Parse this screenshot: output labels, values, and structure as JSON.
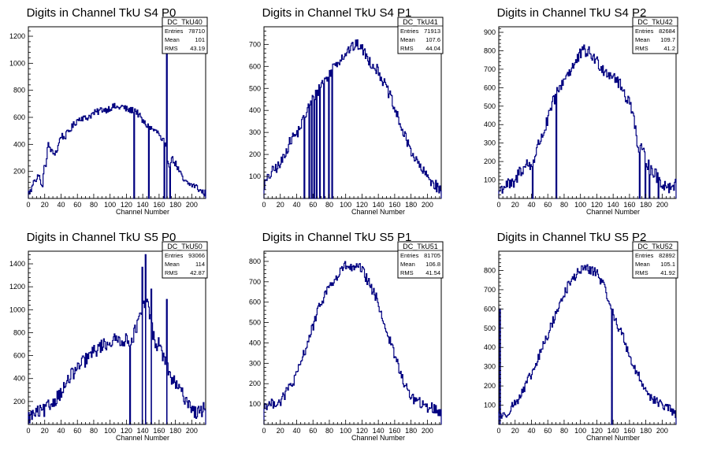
{
  "colors": {
    "histogram": "#000080",
    "axis": "#000000",
    "background": "#ffffff"
  },
  "x_axis_label": "Channel Number",
  "chart_data": [
    {
      "type": "bar",
      "title": "Digits in Channel TkU S4 P0",
      "xlabel": "Channel Number",
      "xlim": [
        0,
        217
      ],
      "ylim": [
        0,
        1270
      ],
      "xticks": [
        0,
        20,
        40,
        60,
        80,
        100,
        120,
        140,
        160,
        180,
        200
      ],
      "yticks": [
        200,
        400,
        600,
        800,
        1000,
        1200
      ],
      "stats": {
        "name": "DC_TkU40",
        "rows": [
          [
            "Entries",
            "78710"
          ],
          [
            "Mean",
            "101"
          ],
          [
            "RMS",
            "43.19"
          ]
        ]
      },
      "envelope": [
        [
          0,
          40
        ],
        [
          4,
          60
        ],
        [
          7,
          160
        ],
        [
          10,
          120
        ],
        [
          13,
          200
        ],
        [
          15,
          100
        ],
        [
          17,
          80
        ],
        [
          20,
          250
        ],
        [
          22,
          260
        ],
        [
          24,
          400
        ],
        [
          26,
          380
        ],
        [
          30,
          330
        ],
        [
          35,
          350
        ],
        [
          40,
          470
        ],
        [
          44,
          450
        ],
        [
          50,
          500
        ],
        [
          55,
          540
        ],
        [
          60,
          580
        ],
        [
          65,
          600
        ],
        [
          70,
          590
        ],
        [
          75,
          610
        ],
        [
          80,
          630
        ],
        [
          85,
          640
        ],
        [
          90,
          660
        ],
        [
          95,
          655
        ],
        [
          100,
          670
        ],
        [
          105,
          680
        ],
        [
          110,
          670
        ],
        [
          115,
          680
        ],
        [
          120,
          660
        ],
        [
          125,
          650
        ],
        [
          130,
          660
        ],
        [
          135,
          620
        ],
        [
          140,
          570
        ],
        [
          145,
          540
        ],
        [
          150,
          520
        ],
        [
          155,
          500
        ],
        [
          160,
          480
        ],
        [
          163,
          420
        ],
        [
          166,
          430
        ],
        [
          170,
          320
        ],
        [
          172,
          240
        ],
        [
          175,
          300
        ],
        [
          180,
          260
        ],
        [
          184,
          210
        ],
        [
          190,
          130
        ],
        [
          195,
          110
        ],
        [
          200,
          100
        ],
        [
          205,
          90
        ],
        [
          210,
          60
        ],
        [
          215,
          40
        ]
      ],
      "spikes": [
        [
          129,
          0
        ],
        [
          147,
          0
        ],
        [
          166,
          0
        ],
        [
          169,
          1180
        ],
        [
          173,
          0
        ]
      ],
      "noise": 25
    },
    {
      "type": "bar",
      "title": "Digits in Channel TkU S4 P1",
      "xlabel": "Channel Number",
      "xlim": [
        0,
        217
      ],
      "ylim": [
        0,
        780
      ],
      "xticks": [
        0,
        20,
        40,
        60,
        80,
        100,
        120,
        140,
        160,
        180,
        200
      ],
      "yticks": [
        100,
        200,
        300,
        400,
        500,
        600,
        700
      ],
      "stats": {
        "name": "DC_TkU41",
        "rows": [
          [
            "Entries",
            "71913"
          ],
          [
            "Mean",
            "107.6"
          ],
          [
            "RMS",
            "44.04"
          ]
        ]
      },
      "envelope": [
        [
          0,
          60
        ],
        [
          5,
          90
        ],
        [
          10,
          120
        ],
        [
          15,
          140
        ],
        [
          20,
          150
        ],
        [
          25,
          200
        ],
        [
          30,
          240
        ],
        [
          35,
          280
        ],
        [
          40,
          290
        ],
        [
          45,
          330
        ],
        [
          50,
          370
        ],
        [
          55,
          420
        ],
        [
          60,
          450
        ],
        [
          65,
          480
        ],
        [
          70,
          520
        ],
        [
          75,
          540
        ],
        [
          80,
          560
        ],
        [
          85,
          600
        ],
        [
          90,
          620
        ],
        [
          95,
          640
        ],
        [
          100,
          660
        ],
        [
          105,
          680
        ],
        [
          110,
          690
        ],
        [
          115,
          700
        ],
        [
          120,
          680
        ],
        [
          125,
          650
        ],
        [
          130,
          620
        ],
        [
          135,
          600
        ],
        [
          140,
          580
        ],
        [
          145,
          540
        ],
        [
          150,
          500
        ],
        [
          155,
          460
        ],
        [
          160,
          400
        ],
        [
          165,
          360
        ],
        [
          170,
          300
        ],
        [
          175,
          260
        ],
        [
          180,
          220
        ],
        [
          185,
          180
        ],
        [
          190,
          150
        ],
        [
          195,
          120
        ],
        [
          200,
          100
        ],
        [
          205,
          80
        ],
        [
          210,
          60
        ],
        [
          215,
          40
        ]
      ],
      "spikes": [
        [
          49,
          0
        ],
        [
          55,
          0
        ],
        [
          58,
          0
        ],
        [
          61,
          0
        ],
        [
          64,
          0
        ],
        [
          68,
          0
        ],
        [
          73,
          0
        ],
        [
          79,
          0
        ],
        [
          83,
          0
        ]
      ],
      "noise": 25
    },
    {
      "type": "bar",
      "title": "Digits in Channel TkU S4 P2",
      "xlabel": "Channel Number",
      "xlim": [
        0,
        217
      ],
      "ylim": [
        0,
        930
      ],
      "xticks": [
        0,
        20,
        40,
        60,
        80,
        100,
        120,
        140,
        160,
        180,
        200
      ],
      "yticks": [
        100,
        200,
        300,
        400,
        500,
        600,
        700,
        800,
        900
      ],
      "stats": {
        "name": "DC_TkU42",
        "rows": [
          [
            "Entries",
            "82684"
          ],
          [
            "Mean",
            "109.7"
          ],
          [
            "RMS",
            "41.2"
          ]
        ]
      },
      "envelope": [
        [
          0,
          40
        ],
        [
          5,
          60
        ],
        [
          10,
          80
        ],
        [
          15,
          70
        ],
        [
          20,
          80
        ],
        [
          25,
          150
        ],
        [
          30,
          160
        ],
        [
          35,
          190
        ],
        [
          40,
          170
        ],
        [
          45,
          240
        ],
        [
          50,
          310
        ],
        [
          55,
          360
        ],
        [
          60,
          420
        ],
        [
          65,
          500
        ],
        [
          70,
          560
        ],
        [
          75,
          600
        ],
        [
          80,
          650
        ],
        [
          85,
          680
        ],
        [
          90,
          710
        ],
        [
          95,
          740
        ],
        [
          100,
          780
        ],
        [
          105,
          800
        ],
        [
          110,
          790
        ],
        [
          115,
          770
        ],
        [
          120,
          740
        ],
        [
          125,
          720
        ],
        [
          130,
          690
        ],
        [
          135,
          680
        ],
        [
          140,
          670
        ],
        [
          145,
          640
        ],
        [
          150,
          600
        ],
        [
          155,
          560
        ],
        [
          160,
          520
        ],
        [
          165,
          470
        ],
        [
          170,
          270
        ],
        [
          175,
          260
        ],
        [
          180,
          220
        ],
        [
          185,
          160
        ],
        [
          190,
          140
        ],
        [
          195,
          110
        ],
        [
          200,
          80
        ],
        [
          205,
          70
        ],
        [
          210,
          60
        ],
        [
          215,
          80
        ]
      ],
      "spikes": [
        [
          41,
          0
        ],
        [
          70,
          0
        ],
        [
          172,
          0
        ],
        [
          179,
          0
        ],
        [
          184,
          0
        ],
        [
          195,
          0
        ]
      ],
      "noise": 35
    },
    {
      "type": "bar",
      "title": "Digits in Channel TkU S5 P0",
      "xlabel": "Channel Number",
      "xlim": [
        0,
        217
      ],
      "ylim": [
        0,
        1510
      ],
      "xticks": [
        0,
        20,
        40,
        60,
        80,
        100,
        120,
        140,
        160,
        180,
        200
      ],
      "yticks": [
        200,
        400,
        600,
        800,
        1000,
        1200,
        1400
      ],
      "stats": {
        "name": "DC_TkU50",
        "rows": [
          [
            "Entries",
            "93066"
          ],
          [
            "Mean",
            "114"
          ],
          [
            "RMS",
            "42.87"
          ]
        ]
      },
      "envelope": [
        [
          0,
          60
        ],
        [
          5,
          80
        ],
        [
          10,
          100
        ],
        [
          15,
          110
        ],
        [
          20,
          120
        ],
        [
          25,
          160
        ],
        [
          30,
          190
        ],
        [
          35,
          240
        ],
        [
          40,
          280
        ],
        [
          45,
          330
        ],
        [
          50,
          400
        ],
        [
          55,
          450
        ],
        [
          60,
          480
        ],
        [
          65,
          530
        ],
        [
          70,
          560
        ],
        [
          75,
          600
        ],
        [
          80,
          630
        ],
        [
          85,
          660
        ],
        [
          90,
          690
        ],
        [
          95,
          700
        ],
        [
          100,
          720
        ],
        [
          105,
          730
        ],
        [
          110,
          740
        ],
        [
          115,
          740
        ],
        [
          120,
          730
        ],
        [
          125,
          720
        ],
        [
          130,
          800
        ],
        [
          135,
          900
        ],
        [
          140,
          1000
        ],
        [
          145,
          1100
        ],
        [
          150,
          900
        ],
        [
          155,
          700
        ],
        [
          160,
          700
        ],
        [
          165,
          600
        ],
        [
          170,
          500
        ],
        [
          175,
          400
        ],
        [
          180,
          350
        ],
        [
          185,
          300
        ],
        [
          190,
          250
        ],
        [
          195,
          200
        ],
        [
          200,
          150
        ],
        [
          205,
          100
        ],
        [
          210,
          100
        ],
        [
          215,
          150
        ]
      ],
      "spikes": [
        [
          124,
          0
        ],
        [
          139,
          1370
        ],
        [
          143,
          1480
        ],
        [
          150,
          1180
        ],
        [
          169,
          1090
        ]
      ],
      "noise": 60
    },
    {
      "type": "bar",
      "title": "Digits in Channel TkU S5 P1",
      "xlabel": "Channel Number",
      "xlim": [
        0,
        217
      ],
      "ylim": [
        0,
        850
      ],
      "xticks": [
        0,
        20,
        40,
        60,
        80,
        100,
        120,
        140,
        160,
        180,
        200
      ],
      "yticks": [
        100,
        200,
        300,
        400,
        500,
        600,
        700,
        800
      ],
      "stats": {
        "name": "DC_TkU51",
        "rows": [
          [
            "Entries",
            "81705"
          ],
          [
            "Mean",
            "106.8"
          ],
          [
            "RMS",
            "41.54"
          ]
        ]
      },
      "envelope": [
        [
          0,
          90
        ],
        [
          5,
          100
        ],
        [
          10,
          100
        ],
        [
          15,
          110
        ],
        [
          20,
          110
        ],
        [
          25,
          140
        ],
        [
          30,
          180
        ],
        [
          35,
          200
        ],
        [
          40,
          240
        ],
        [
          45,
          300
        ],
        [
          50,
          360
        ],
        [
          55,
          420
        ],
        [
          60,
          480
        ],
        [
          65,
          540
        ],
        [
          70,
          600
        ],
        [
          75,
          640
        ],
        [
          80,
          680
        ],
        [
          85,
          700
        ],
        [
          90,
          720
        ],
        [
          95,
          760
        ],
        [
          100,
          780
        ],
        [
          105,
          770
        ],
        [
          110,
          760
        ],
        [
          115,
          770
        ],
        [
          120,
          760
        ],
        [
          125,
          720
        ],
        [
          130,
          680
        ],
        [
          135,
          640
        ],
        [
          140,
          600
        ],
        [
          145,
          520
        ],
        [
          150,
          460
        ],
        [
          155,
          400
        ],
        [
          160,
          340
        ],
        [
          165,
          280
        ],
        [
          170,
          220
        ],
        [
          175,
          170
        ],
        [
          180,
          140
        ],
        [
          185,
          120
        ],
        [
          190,
          110
        ],
        [
          195,
          90
        ],
        [
          200,
          80
        ],
        [
          205,
          90
        ],
        [
          210,
          70
        ],
        [
          215,
          60
        ]
      ],
      "spikes": [],
      "noise": 25
    },
    {
      "type": "bar",
      "title": "Digits in Channel TkU S5 P2",
      "xlabel": "Channel Number",
      "xlim": [
        0,
        217
      ],
      "ylim": [
        0,
        900
      ],
      "xticks": [
        0,
        20,
        40,
        60,
        80,
        100,
        120,
        140,
        160,
        180,
        200
      ],
      "yticks": [
        100,
        200,
        300,
        400,
        500,
        600,
        700,
        800
      ],
      "stats": {
        "name": "DC_TkU52",
        "rows": [
          [
            "Entries",
            "82892"
          ],
          [
            "Mean",
            "105.1"
          ],
          [
            "RMS",
            "41.92"
          ]
        ]
      },
      "envelope": [
        [
          0,
          60
        ],
        [
          3,
          50
        ],
        [
          6,
          40
        ],
        [
          10,
          60
        ],
        [
          15,
          90
        ],
        [
          20,
          110
        ],
        [
          25,
          140
        ],
        [
          30,
          170
        ],
        [
          35,
          220
        ],
        [
          40,
          260
        ],
        [
          45,
          300
        ],
        [
          50,
          360
        ],
        [
          55,
          420
        ],
        [
          60,
          460
        ],
        [
          65,
          520
        ],
        [
          70,
          580
        ],
        [
          75,
          620
        ],
        [
          80,
          680
        ],
        [
          85,
          720
        ],
        [
          90,
          750
        ],
        [
          95,
          780
        ],
        [
          100,
          800
        ],
        [
          105,
          820
        ],
        [
          110,
          800
        ],
        [
          115,
          800
        ],
        [
          120,
          790
        ],
        [
          125,
          750
        ],
        [
          130,
          700
        ],
        [
          135,
          650
        ],
        [
          140,
          570
        ],
        [
          145,
          520
        ],
        [
          150,
          480
        ],
        [
          155,
          420
        ],
        [
          160,
          360
        ],
        [
          165,
          300
        ],
        [
          170,
          260
        ],
        [
          175,
          220
        ],
        [
          180,
          180
        ],
        [
          185,
          150
        ],
        [
          190,
          130
        ],
        [
          195,
          110
        ],
        [
          200,
          100
        ],
        [
          205,
          90
        ],
        [
          210,
          80
        ],
        [
          215,
          50
        ]
      ],
      "spikes": [
        [
          1,
          600
        ],
        [
          138,
          0
        ]
      ],
      "noise": 25
    }
  ]
}
